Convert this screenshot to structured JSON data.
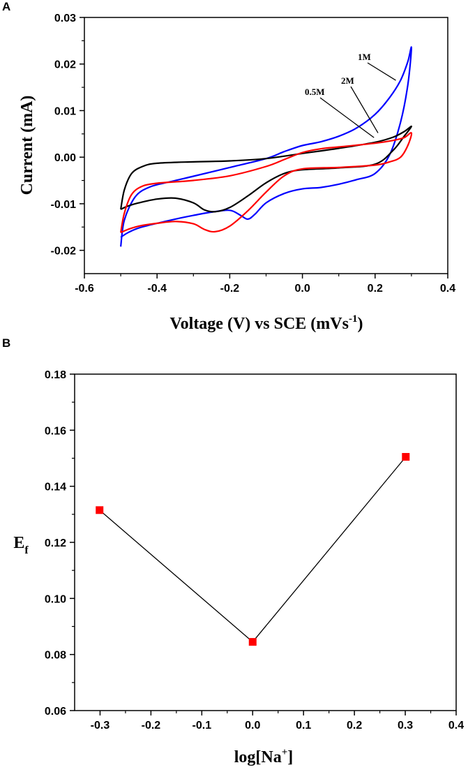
{
  "chart_data": [
    {
      "panel": "A",
      "type": "line",
      "title": "",
      "xlabel": "Voltage (V) vs SCE (mVs",
      "xlabel_sup": "-1",
      "xlabel_suffix": ")",
      "ylabel": "Current (mA)",
      "xlim": [
        -0.6,
        0.4
      ],
      "ylim": [
        -0.025,
        0.03
      ],
      "xticks": [
        -0.6,
        -0.4,
        -0.2,
        0.0,
        0.2,
        0.4
      ],
      "xtick_labels": [
        "-0.6",
        "-0.4",
        "-0.2",
        "0.0",
        "0.2",
        "0.4"
      ],
      "yticks": [
        -0.02,
        -0.01,
        0.0,
        0.01,
        0.02,
        0.03
      ],
      "ytick_labels": [
        "-0.02",
        "-0.01",
        "0.00",
        "0.01",
        "0.02",
        "0.03"
      ],
      "grid": false,
      "series": [
        {
          "name": "1M",
          "color": "#0000ff",
          "x": [
            -0.5,
            -0.49,
            -0.46,
            -0.42,
            -0.36,
            -0.3,
            -0.2,
            -0.1,
            -0.05,
            0.0,
            0.05,
            0.1,
            0.15,
            0.2,
            0.24,
            0.27,
            0.29,
            0.3,
            0.29,
            0.27,
            0.24,
            0.2,
            0.15,
            0.1,
            0.05,
            0.0,
            -0.05,
            -0.1,
            -0.13,
            -0.15,
            -0.17,
            -0.2,
            -0.25,
            -0.3,
            -0.35,
            -0.4,
            -0.45,
            -0.48,
            -0.5
          ],
          "y": [
            -0.0192,
            -0.0135,
            -0.0085,
            -0.0064,
            -0.0052,
            -0.0041,
            -0.0022,
            -0.0003,
            0.0012,
            0.0025,
            0.0033,
            0.0045,
            0.0063,
            0.0092,
            0.0128,
            0.0165,
            0.0205,
            0.0235,
            0.0155,
            0.0075,
            0.0005,
            -0.0035,
            -0.0048,
            -0.0058,
            -0.0065,
            -0.0068,
            -0.0078,
            -0.0098,
            -0.0122,
            -0.0133,
            -0.0125,
            -0.0114,
            -0.0118,
            -0.0125,
            -0.0133,
            -0.0142,
            -0.0152,
            -0.0162,
            -0.0172
          ]
        },
        {
          "name": "2M",
          "color": "#000000",
          "x": [
            -0.5,
            -0.49,
            -0.47,
            -0.44,
            -0.4,
            -0.3,
            -0.2,
            -0.1,
            0.0,
            0.1,
            0.2,
            0.25,
            0.28,
            0.3,
            0.28,
            0.25,
            0.2,
            0.1,
            0.0,
            -0.05,
            -0.1,
            -0.15,
            -0.2,
            -0.24,
            -0.27,
            -0.3,
            -0.35,
            -0.4,
            -0.45,
            -0.48,
            -0.5
          ],
          "y": [
            -0.0112,
            -0.007,
            -0.0035,
            -0.002,
            -0.0013,
            -0.001,
            -0.0008,
            -0.0003,
            0.0008,
            0.0019,
            0.0032,
            0.0043,
            0.0055,
            0.0066,
            0.0045,
            0.0015,
            -0.0015,
            -0.0023,
            -0.0027,
            -0.0035,
            -0.0055,
            -0.0083,
            -0.0108,
            -0.0117,
            -0.0113,
            -0.0098,
            -0.0088,
            -0.009,
            -0.0098,
            -0.0105,
            -0.0112
          ]
        },
        {
          "name": "0.5M",
          "color": "#ff0000",
          "x": [
            -0.5,
            -0.49,
            -0.47,
            -0.44,
            -0.4,
            -0.35,
            -0.3,
            -0.2,
            -0.1,
            -0.05,
            0.0,
            0.05,
            0.1,
            0.2,
            0.25,
            0.28,
            0.3,
            0.29,
            0.27,
            0.24,
            0.2,
            0.1,
            0.0,
            -0.05,
            -0.1,
            -0.15,
            -0.2,
            -0.24,
            -0.27,
            -0.3,
            -0.35,
            -0.4,
            -0.45,
            -0.48,
            -0.5
          ],
          "y": [
            -0.0162,
            -0.012,
            -0.008,
            -0.0062,
            -0.0056,
            -0.0053,
            -0.005,
            -0.004,
            -0.002,
            -0.0005,
            0.001,
            0.0018,
            0.0022,
            0.003,
            0.0036,
            0.0042,
            0.0052,
            0.0025,
            0.0,
            -0.001,
            -0.0017,
            -0.0022,
            -0.0025,
            -0.004,
            -0.0075,
            -0.0115,
            -0.0148,
            -0.016,
            -0.0155,
            -0.0143,
            -0.0138,
            -0.0142,
            -0.0148,
            -0.0155,
            -0.0162
          ]
        }
      ],
      "annotations": [
        {
          "text": "1M",
          "x": 0.257,
          "y": 0.0165
        },
        {
          "text": "2M",
          "x": 0.208,
          "y": 0.0052
        },
        {
          "text": "0.5M",
          "x": 0.197,
          "y": 0.0042
        }
      ]
    },
    {
      "panel": "B",
      "type": "line",
      "title": "",
      "xlabel": "log[Na",
      "xlabel_sup": "+",
      "xlabel_suffix": "]",
      "ylabel": "E",
      "ylabel_sub": "f",
      "xlim": [
        -0.35,
        0.4
      ],
      "ylim": [
        0.06,
        0.18
      ],
      "xticks": [
        -0.3,
        -0.2,
        -0.1,
        0.0,
        0.1,
        0.2,
        0.3,
        0.4
      ],
      "xtick_labels": [
        "-0.3",
        "-0.2",
        "-0.1",
        "0.0",
        "0.1",
        "0.2",
        "0.3",
        "0.4"
      ],
      "yticks": [
        0.06,
        0.08,
        0.1,
        0.12,
        0.14,
        0.16,
        0.18
      ],
      "ytick_labels": [
        "0.06",
        "0.08",
        "0.10",
        "0.12",
        "0.14",
        "0.16",
        "0.18"
      ],
      "grid": false,
      "series": [
        {
          "name": "Ef",
          "color": "#000000",
          "marker": "square",
          "marker_color": "#ff0000",
          "x": [
            -0.301,
            0.0,
            0.301
          ],
          "y": [
            0.1315,
            0.0845,
            0.1505
          ]
        }
      ]
    }
  ]
}
